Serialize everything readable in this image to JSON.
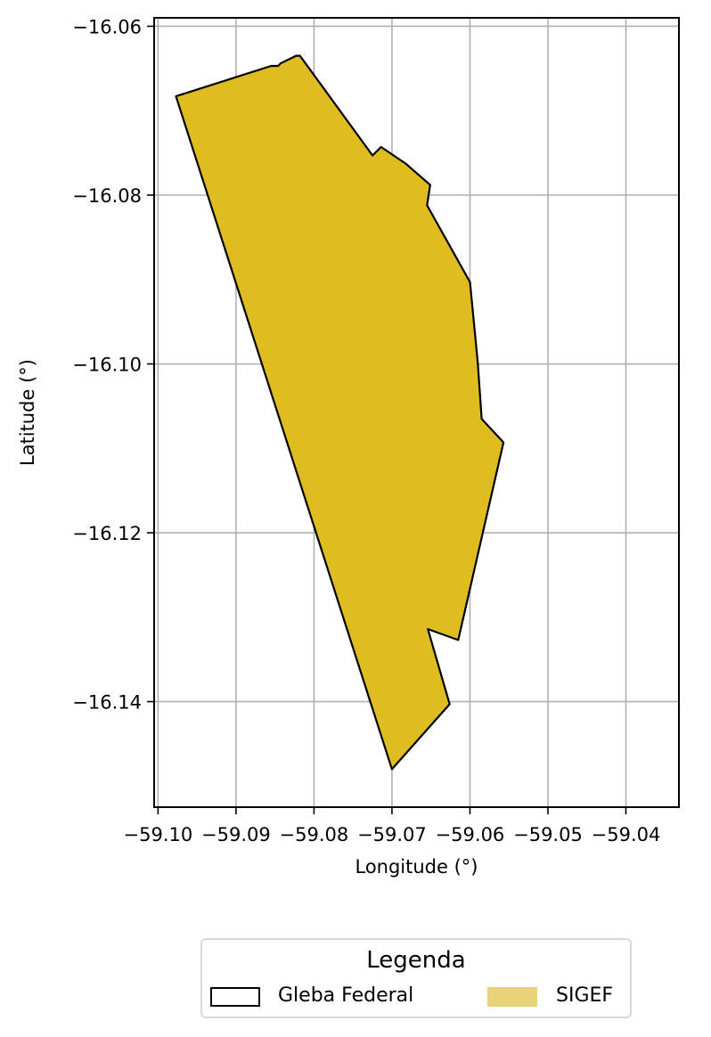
{
  "chart_data": {
    "type": "map",
    "xlabel": "Longitude (°)",
    "ylabel": "Latitude (°)",
    "xlim": [
      -59.1005,
      -59.0332
    ],
    "ylim": [
      -16.1525,
      -16.059
    ],
    "grid": true,
    "x_ticks": [
      -59.1,
      -59.09,
      -59.08,
      -59.07,
      -59.06,
      -59.05,
      -59.04
    ],
    "x_tick_labels": [
      "−59.10",
      "−59.09",
      "−59.08",
      "−59.07",
      "−59.06",
      "−59.05",
      "−59.04"
    ],
    "y_ticks": [
      -16.06,
      -16.08,
      -16.1,
      -16.12,
      -16.14
    ],
    "y_tick_labels": [
      "−16.06",
      "−16.08",
      "−16.10",
      "−16.12",
      "−16.14"
    ],
    "polygon": [
      [
        -59.0977,
        -16.0683
      ],
      [
        -59.0855,
        -16.0647
      ],
      [
        -59.0846,
        -16.0647
      ],
      [
        -59.0843,
        -16.0644
      ],
      [
        -59.0823,
        -16.0635
      ],
      [
        -59.0818,
        -16.0635
      ],
      [
        -59.0725,
        -16.0753
      ],
      [
        -59.0714,
        -16.0743
      ],
      [
        -59.0682,
        -16.0763
      ],
      [
        -59.0651,
        -16.0788
      ],
      [
        -59.0655,
        -16.0812
      ],
      [
        -59.06,
        -16.0903
      ],
      [
        -59.059,
        -16.0998
      ],
      [
        -59.0585,
        -16.1065
      ],
      [
        -59.0557,
        -16.1093
      ],
      [
        -59.0615,
        -16.1327
      ],
      [
        -59.0654,
        -16.1314
      ],
      [
        -59.0626,
        -16.1403
      ],
      [
        -59.07,
        -16.148
      ]
    ],
    "series": [
      {
        "name": "Gleba Federal",
        "edgecolor": "#000000",
        "facecolor": "none"
      },
      {
        "name": "SIGEF",
        "facecolor": "#dfbd20",
        "alpha": 0.6
      }
    ],
    "legend": {
      "title": "Legenda",
      "placement": "bottom-center",
      "items": [
        {
          "label": "Gleba Federal",
          "style": "outline",
          "color": "#000000"
        },
        {
          "label": "SIGEF",
          "style": "fill",
          "color": "#e8d27a"
        }
      ]
    },
    "colors": {
      "fill": "#dfbd20",
      "edge": "#000000",
      "grid": "#b0b0b0"
    }
  }
}
